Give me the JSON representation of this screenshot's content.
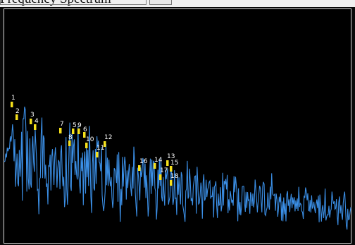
{
  "window": {
    "title": "Frequency Spectrum"
  },
  "chart_data": {
    "type": "line",
    "title": "",
    "xlabel": "",
    "ylabel": "",
    "grid": false,
    "legend": "none",
    "line_color": "#3b8fe6",
    "marker_color": "#f6e11b",
    "label_color": "#ffffff",
    "background_color": "#000000",
    "axis_color": "#d9d9d9",
    "peaks": [
      {
        "label": "1"
      },
      {
        "label": "2"
      },
      {
        "label": "3"
      },
      {
        "label": "4"
      },
      {
        "label": "7"
      },
      {
        "label": "5"
      },
      {
        "label": "9"
      },
      {
        "label": "8"
      },
      {
        "label": "6"
      },
      {
        "label": "10"
      },
      {
        "label": "11"
      },
      {
        "label": "12"
      },
      {
        "label": "16"
      },
      {
        "label": "14"
      },
      {
        "label": "17"
      },
      {
        "label": "13"
      },
      {
        "label": "15"
      },
      {
        "label": "18"
      }
    ]
  }
}
